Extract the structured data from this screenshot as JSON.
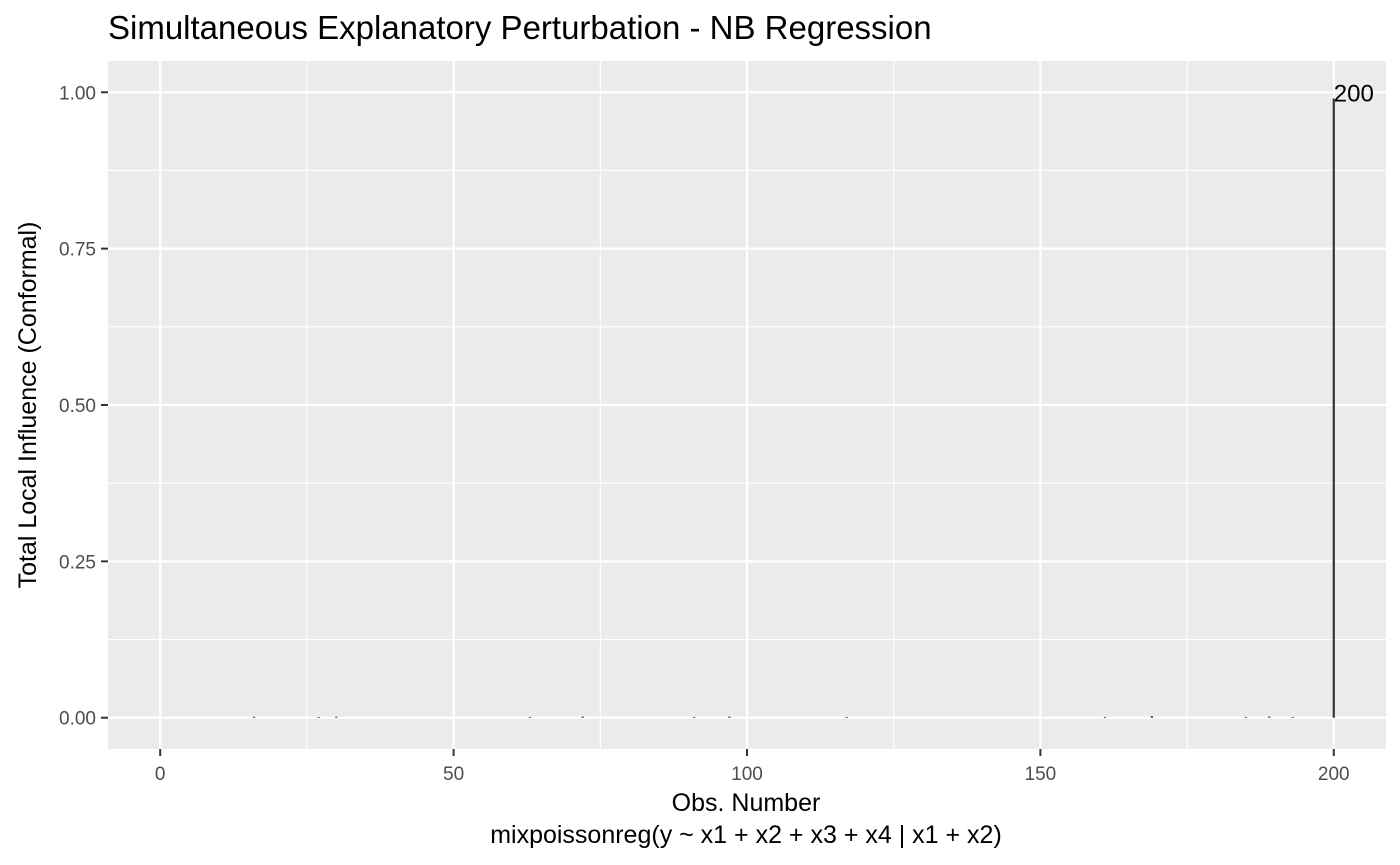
{
  "chart_data": {
    "type": "bar",
    "title": "Simultaneous Explanatory Perturbation - NB Regression",
    "xlabel": "Obs. Number",
    "xlabel_caption": "mixpoissonreg(y ~ x1 + x2 + x3 + x4 | x1 + x2)",
    "ylabel": "Total Local Influence (Conformal)",
    "xlim": [
      -8.9,
      208.9
    ],
    "ylim": [
      -0.05,
      1.05
    ],
    "x_ticks": [
      0,
      50,
      100,
      150,
      200
    ],
    "x_tick_labels": [
      "0",
      "50",
      "100",
      "150",
      "200"
    ],
    "y_ticks": [
      0,
      0.25,
      0.5,
      0.75,
      1.0
    ],
    "y_tick_labels": [
      "0.00",
      "0.25",
      "0.50",
      "0.75",
      "1.00"
    ],
    "grid": true,
    "panel_background": "#ebebeb",
    "grid_color": "#ffffff",
    "bar_color": "#333333",
    "points": [
      {
        "x": 16,
        "y": 0.0015
      },
      {
        "x": 27,
        "y": 0.0012
      },
      {
        "x": 30,
        "y": 0.0015
      },
      {
        "x": 63,
        "y": 0.0012
      },
      {
        "x": 72,
        "y": 0.0018
      },
      {
        "x": 91,
        "y": 0.0012
      },
      {
        "x": 97,
        "y": 0.0018
      },
      {
        "x": 117,
        "y": 0.0012
      },
      {
        "x": 161,
        "y": 0.0012
      },
      {
        "x": 169,
        "y": 0.0025
      },
      {
        "x": 185,
        "y": 0.0012
      },
      {
        "x": 189,
        "y": 0.0018
      },
      {
        "x": 193,
        "y": 0.0012
      },
      {
        "x": 200,
        "y": 0.99
      }
    ],
    "labeled_points": [
      {
        "x": 200,
        "y": 0.99,
        "label": "200"
      }
    ]
  }
}
